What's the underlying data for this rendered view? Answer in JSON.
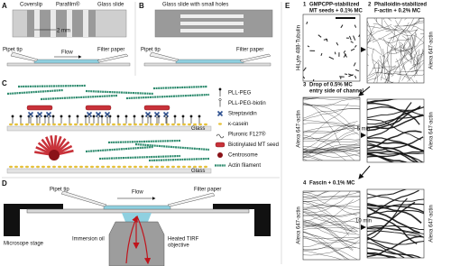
{
  "panel_a": {
    "label": "A",
    "coverslip": "Coverslip",
    "parafilm": "Parafilm®",
    "glass_slide": "Glass slide",
    "scale": "2 mm",
    "pipet_tip": "Pipet tip",
    "filter_paper": "Filter paper",
    "flow": "Flow"
  },
  "panel_b": {
    "label": "B",
    "glass_slide": "Glass slide with small holes",
    "pipet_tip": "Pipet tip",
    "filter_paper": "Filter paper"
  },
  "panel_c": {
    "label": "C",
    "legend": [
      "PLL-PEG",
      "PLL-PEG-biotin",
      "Streptavidin",
      "κ-casein",
      "Pluronic F127®",
      "Biotinylated MT seed",
      "Centrosome",
      "Actin filament"
    ],
    "surface_top": "Glass",
    "surface_bottom": "Glass"
  },
  "panel_d": {
    "label": "D",
    "pipet_tip": "Pipet tip",
    "flow": "Flow",
    "filter_paper": "Filter paper",
    "stage": "Microsope stage",
    "oil": "Immersion oil",
    "objective_lines": [
      "Heated TIRF",
      "objective"
    ]
  },
  "panel_e": {
    "label": "E",
    "steps": [
      {
        "number": "1",
        "title_lines": [
          "GMPCPP-stabilized",
          "MT seeds + 0.1% MC"
        ]
      },
      {
        "number": "2",
        "title_lines": [
          "Phalloidin-stabilized",
          "F-actin + 0.2% MC"
        ]
      },
      {
        "number": "3",
        "title_lines": [
          "Drop of 0.5% MC",
          "entry side of channel"
        ]
      },
      {
        "number": "4",
        "title_lines": [
          "Fascin + 0.1% MC"
        ]
      }
    ],
    "intervals": [
      "5 min",
      "10 min"
    ],
    "image_stains": [
      "HiLyte 488-Tubulin",
      "Alexa 647-actin",
      "Alexa 647-actin",
      "Alexa 647-actin",
      "Alexa 647-actin",
      "Alexa 647-actin"
    ]
  }
}
